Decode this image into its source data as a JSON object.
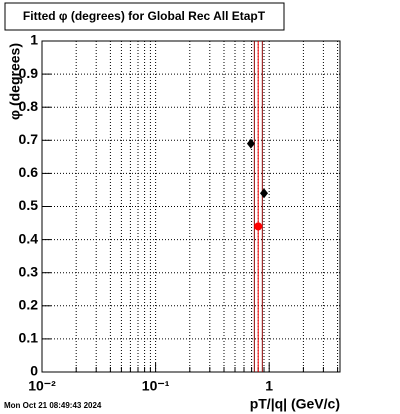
{
  "chart_data": {
    "type": "scatter",
    "title": "Fitted φ (degrees) for Global Rec All EtapT",
    "y_label": "φ (degrees)",
    "x_label": "pT/|q| (GeV/c)",
    "timestamp": "Mon Oct 21 08:49:43 2024",
    "x_log": true,
    "xlim": [
      0.01,
      4.2
    ],
    "ylim": [
      0,
      1
    ],
    "xticks": [
      {
        "value": 0.01,
        "label": "10⁻²"
      },
      {
        "value": 0.1,
        "label": "10⁻¹"
      },
      1
    ],
    "xminorticks": [
      0.02,
      0.03,
      0.04,
      0.05,
      0.06,
      0.07,
      0.08,
      0.09,
      0.2,
      0.3,
      0.4,
      0.5,
      0.6,
      0.7,
      0.8,
      0.9,
      2,
      3,
      4
    ],
    "yticks": [
      0,
      0.1,
      0.2,
      0.3,
      0.4,
      0.5,
      0.6,
      0.7,
      0.8,
      0.9,
      1
    ],
    "grid": true,
    "vlines": [
      {
        "x": 0.74,
        "color": "#8b0000"
      },
      {
        "x": 0.8,
        "color": "#ff0000"
      },
      {
        "x": 0.87,
        "color": "#8b0000"
      }
    ],
    "series": [
      {
        "color": "#000000",
        "marker": "diamond",
        "x": [
          0.69,
          0.9
        ],
        "values": [
          0.69,
          0.54
        ]
      },
      {
        "color": "#ff0000",
        "marker": "circle",
        "x": [
          0.8
        ],
        "values": [
          0.44
        ]
      }
    ]
  }
}
